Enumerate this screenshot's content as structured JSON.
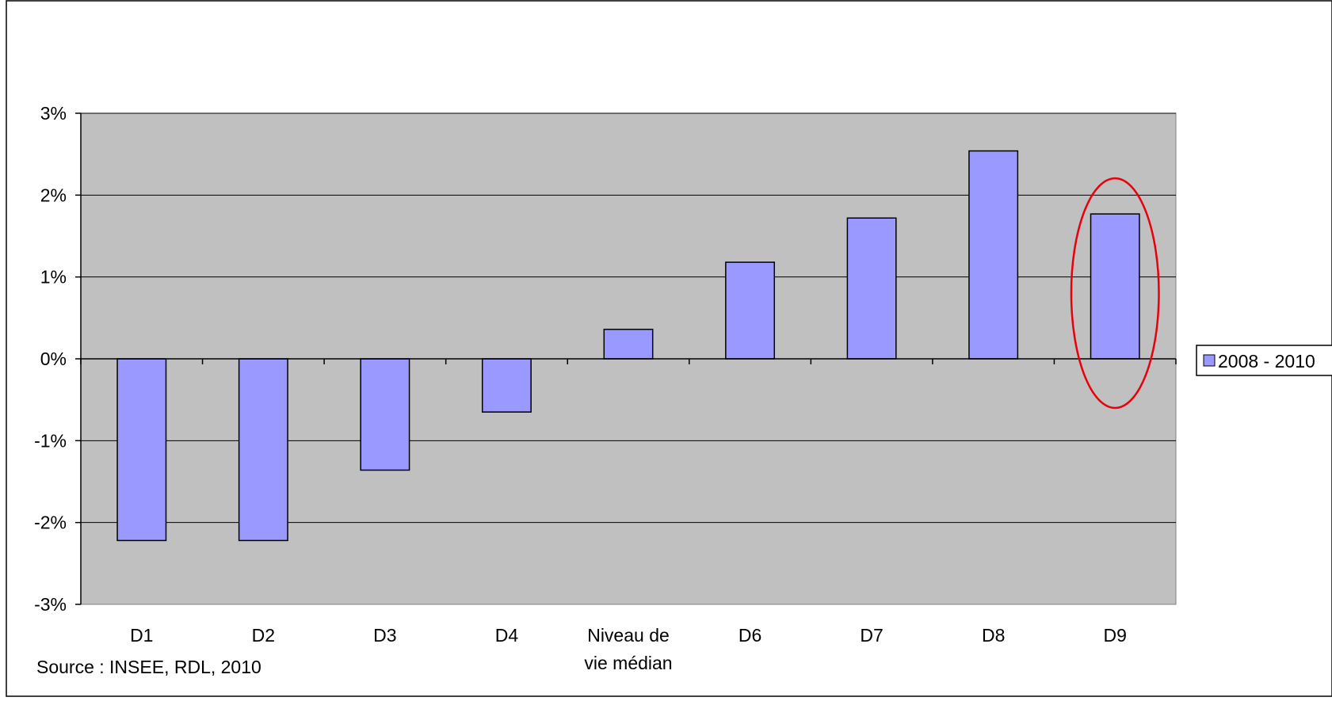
{
  "chart_data": {
    "type": "bar",
    "categories": [
      "D1",
      "D2",
      "D3",
      "D4",
      "Niveau de vie médian",
      "D6",
      "D7",
      "D8",
      "D9"
    ],
    "category_label_lines": [
      [
        "D1"
      ],
      [
        "D2"
      ],
      [
        "D3"
      ],
      [
        "D4"
      ],
      [
        "Niveau de",
        "vie médian"
      ],
      [
        "D6"
      ],
      [
        "D7"
      ],
      [
        "D8"
      ],
      [
        "D9"
      ]
    ],
    "series": [
      {
        "name": "2008 - 2010",
        "values": [
          -2.22,
          -2.22,
          -1.36,
          -0.65,
          0.36,
          1.18,
          1.72,
          2.54,
          1.77
        ]
      }
    ],
    "ylim": [
      -3,
      3
    ],
    "y_ticks": [
      -3,
      -2,
      -1,
      0,
      1,
      2,
      3
    ],
    "y_tick_labels": [
      "-3%",
      "-2%",
      "-1%",
      "0%",
      "1%",
      "2%",
      "3%"
    ],
    "y_unit": "%",
    "grid": true,
    "legend_position": "right",
    "highlighted_category": "D9",
    "source": "Source : INSEE, RDL, 2010",
    "colors": {
      "bar_fill": "#9999ff",
      "bar_stroke": "#000000",
      "plot_background": "#c0c0c0",
      "highlight_ellipse": "#e8000b"
    }
  }
}
